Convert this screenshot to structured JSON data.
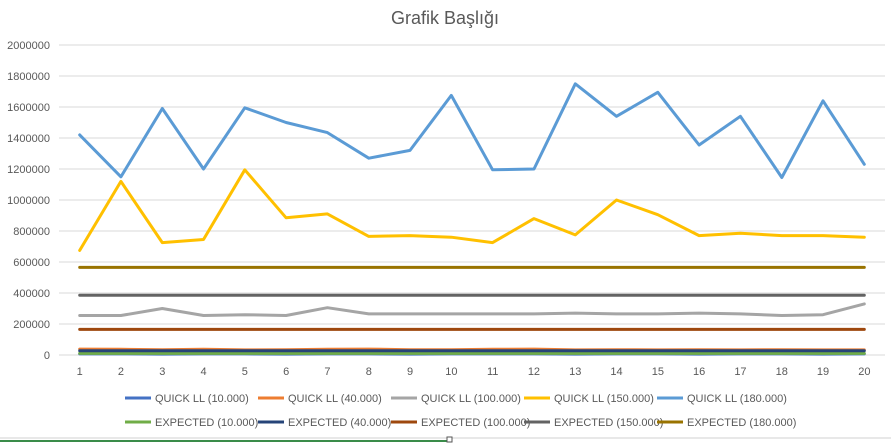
{
  "chart_data": {
    "type": "line",
    "title": "Grafik Başlığı",
    "xlabel": "",
    "ylabel": "",
    "x": [
      1,
      2,
      3,
      4,
      5,
      6,
      7,
      8,
      9,
      10,
      11,
      12,
      13,
      14,
      15,
      16,
      17,
      18,
      19,
      20
    ],
    "x_tick_labels": [
      "1",
      "2",
      "3",
      "4",
      "5",
      "6",
      "7",
      "8",
      "9",
      "10",
      "11",
      "12",
      "13",
      "14",
      "15",
      "16",
      "17",
      "18",
      "19",
      "20"
    ],
    "ylim": [
      0,
      2000000
    ],
    "y_ticks": [
      0,
      200000,
      400000,
      600000,
      800000,
      1000000,
      1200000,
      1400000,
      1600000,
      1800000,
      2000000
    ],
    "y_tick_labels": [
      "0",
      "200000",
      "400000",
      "600000",
      "800000",
      "1000000",
      "1200000",
      "1400000",
      "1600000",
      "1800000",
      "2000000"
    ],
    "grid": true,
    "legend_position": "bottom",
    "series": [
      {
        "name": "QUICK LL (10.000)",
        "color": "#4472c4",
        "values": [
          7000,
          7000,
          6000,
          7000,
          7000,
          6000,
          7000,
          7000,
          6000,
          7000,
          7000,
          7000,
          6000,
          7000,
          7000,
          6000,
          7000,
          7000,
          6000,
          7000
        ]
      },
      {
        "name": "QUICK LL (40.000)",
        "color": "#ed7d31",
        "values": [
          38000,
          37000,
          34000,
          37000,
          33000,
          34000,
          37000,
          38000,
          34000,
          34000,
          37000,
          38000,
          33000,
          34000,
          33000,
          34000,
          33000,
          34000,
          33000,
          33000
        ]
      },
      {
        "name": "QUICK LL (100.000)",
        "color": "#a5a5a5",
        "values": [
          255000,
          255000,
          300000,
          255000,
          260000,
          255000,
          305000,
          265000,
          265000,
          265000,
          265000,
          265000,
          270000,
          265000,
          265000,
          270000,
          265000,
          255000,
          260000,
          330000
        ]
      },
      {
        "name": "QUICK LL (150.000)",
        "color": "#ffc000",
        "values": [
          675000,
          1120000,
          725000,
          745000,
          1195000,
          885000,
          910000,
          765000,
          770000,
          760000,
          725000,
          880000,
          775000,
          1000000,
          905000,
          770000,
          785000,
          770000,
          770000,
          760000
        ]
      },
      {
        "name": "QUICK LL (180.000)",
        "color": "#5b9bd5",
        "values": [
          1420000,
          1150000,
          1590000,
          1200000,
          1595000,
          1500000,
          1435000,
          1270000,
          1320000,
          1675000,
          1195000,
          1200000,
          1750000,
          1540000,
          1695000,
          1355000,
          1540000,
          1145000,
          1640000,
          1230000
        ]
      },
      {
        "name": "EXPECTED (10.000)",
        "color": "#70ad47",
        "values": [
          10000,
          10000,
          10000,
          10000,
          10000,
          10000,
          10000,
          10000,
          10000,
          10000,
          10000,
          10000,
          10000,
          10000,
          10000,
          10000,
          10000,
          10000,
          10000,
          10000
        ]
      },
      {
        "name": "EXPECTED (40.000)",
        "color": "#264478",
        "values": [
          28000,
          28000,
          28000,
          28000,
          28000,
          28000,
          28000,
          28000,
          28000,
          28000,
          28000,
          28000,
          28000,
          28000,
          28000,
          28000,
          28000,
          28000,
          28000,
          28000
        ]
      },
      {
        "name": "EXPECTED (100.000)",
        "color": "#9e480e",
        "values": [
          165000,
          165000,
          165000,
          165000,
          165000,
          165000,
          165000,
          165000,
          165000,
          165000,
          165000,
          165000,
          165000,
          165000,
          165000,
          165000,
          165000,
          165000,
          165000,
          165000
        ]
      },
      {
        "name": "EXPECTED (150.000)",
        "color": "#636363",
        "values": [
          385000,
          385000,
          385000,
          385000,
          385000,
          385000,
          385000,
          385000,
          385000,
          385000,
          385000,
          385000,
          385000,
          385000,
          385000,
          385000,
          385000,
          385000,
          385000,
          385000
        ]
      },
      {
        "name": "EXPECTED (180.000)",
        "color": "#997300",
        "values": [
          565000,
          565000,
          565000,
          565000,
          565000,
          565000,
          565000,
          565000,
          565000,
          565000,
          565000,
          565000,
          565000,
          565000,
          565000,
          565000,
          565000,
          565000,
          565000,
          565000
        ]
      }
    ]
  }
}
